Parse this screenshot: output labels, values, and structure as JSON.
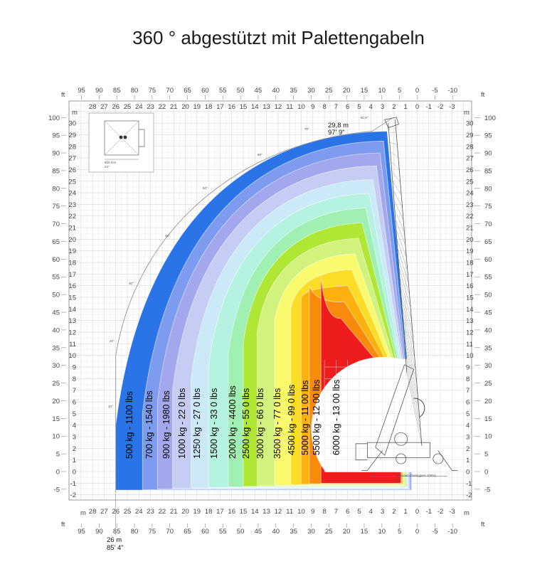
{
  "title": "360 ° abgestützt mit Palettengabeln",
  "axes": {
    "unit_m": "m",
    "unit_ft": "ft",
    "horizontal_m": [
      "28",
      "27",
      "26",
      "25",
      "24",
      "23",
      "22",
      "21",
      "20",
      "19",
      "18",
      "17",
      "16",
      "15",
      "14",
      "13",
      "12",
      "11",
      "10",
      "9",
      "8",
      "7",
      "6",
      "5",
      "4",
      "3",
      "2",
      "1",
      "0",
      "-1",
      "-2",
      "-3"
    ],
    "horizontal_ft": [
      "95",
      "90",
      "85",
      "80",
      "75",
      "70",
      "65",
      "60",
      "55",
      "50",
      "45",
      "40",
      "35",
      "30",
      "25",
      "20",
      "15",
      "10",
      "5",
      "0",
      "-5",
      "-10"
    ],
    "vertical_m": [
      "30",
      "29",
      "28",
      "27",
      "26",
      "25",
      "24",
      "23",
      "22",
      "21",
      "20",
      "19",
      "18",
      "17",
      "16",
      "15",
      "14",
      "13",
      "12",
      "11",
      "10",
      "9",
      "8",
      "7",
      "6",
      "5",
      "4",
      "3",
      "2",
      "1",
      "0",
      "-1",
      "-2"
    ],
    "vertical_ft": [
      "100",
      "95",
      "90",
      "85",
      "80",
      "75",
      "70",
      "65",
      "60",
      "55",
      "50",
      "45",
      "40",
      "35",
      "30",
      "25",
      "20",
      "15",
      "10",
      "5",
      "0",
      "-5"
    ]
  },
  "zones": [
    {
      "label": "500 kg - 1100 lbs",
      "color": "#2a74e8",
      "outer_reach_m": 26
    },
    {
      "label": "700 kg - 1540 lbs",
      "color": "#7d9cf0",
      "outer_reach_m": 23.7
    },
    {
      "label": "900 kg - 1980 lbs",
      "color": "#a3a8ee",
      "outer_reach_m": 22.4
    },
    {
      "label": "1000 kg - 22 0 lbs",
      "color": "#c5cdf4",
      "outer_reach_m": 21.1
    },
    {
      "label": "1250 kg - 27 0 lbs",
      "color": "#cbe9f6",
      "outer_reach_m": 19.5
    },
    {
      "label": "1500 kg - 33 0 lbs",
      "color": "#b6f2e2",
      "outer_reach_m": 18
    },
    {
      "label": "2000 kg - 4400 lbs",
      "color": "#a0f0b4",
      "outer_reach_m": 16.3
    },
    {
      "label": "2500 kg - 55 0 lbs",
      "color": "#b0e634",
      "outer_reach_m": 15
    },
    {
      "label": "3000 kg - 66 0 lbs",
      "color": "#d2f27e",
      "outer_reach_m": 13.8
    },
    {
      "label": "3500 kg - 77 0 lbs",
      "color": "#fafa6e",
      "outer_reach_m": 12.3
    },
    {
      "label": "4500 kg - 99 0 lbs",
      "color": "#fbdc26",
      "outer_reach_m": 10.9
    },
    {
      "label": "5000 kg - 11 00 lbs",
      "color": "#fcb10c",
      "outer_reach_m": 10
    },
    {
      "label": "5500 kg - 12 00 lbs",
      "color": "#f98a0c",
      "outer_reach_m": 9.3
    },
    {
      "label": "6000 kg - 13 00 lbs",
      "color": "#ee1c1c",
      "outer_reach_m": 8.3
    }
  ],
  "annotations": {
    "max_height_m": "29,8 m",
    "max_height_ft": "97' 9\"",
    "max_reach_m": "26 m",
    "max_reach_ft": "85' 4\"",
    "boom_angle": "81,5°",
    "outrigger_note": "5500 mm (Outriggers 100%)",
    "outrigger_ft": "18'",
    "fork_dim_mm": "600 mm",
    "fork_dim_in": "24\""
  },
  "angle_labels": [
    "70°",
    "60°",
    "50°",
    "40°",
    "30°",
    "20°",
    "10°"
  ]
}
